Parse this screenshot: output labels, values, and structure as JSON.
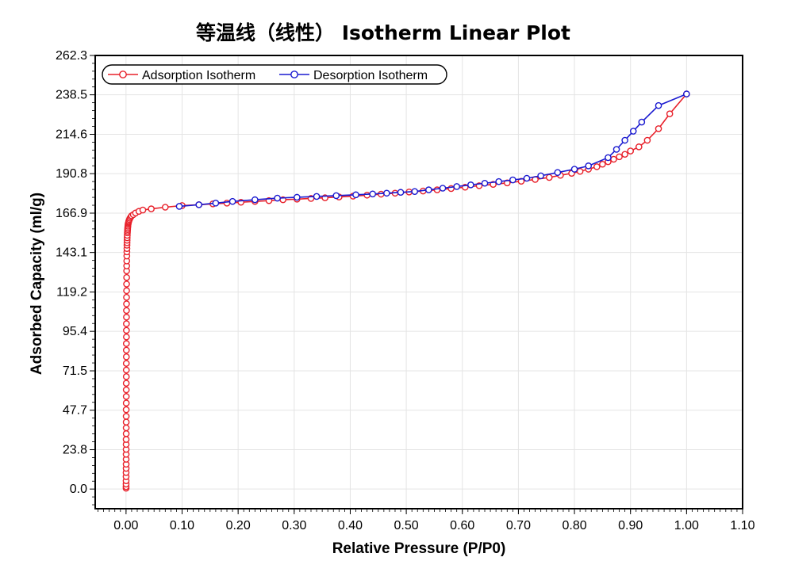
{
  "chart_data": {
    "type": "line",
    "title": "等温线（线性） Isotherm Linear Plot",
    "xlabel": "Relative Pressure (P/P0)",
    "ylabel": "Adsorbed Capacity (ml/g)",
    "xlim": [
      -0.055,
      1.1
    ],
    "ylim": [
      -11.9,
      262.3
    ],
    "x_ticks": [
      0.0,
      0.1,
      0.2,
      0.3,
      0.4,
      0.5,
      0.6,
      0.7,
      0.8,
      0.9,
      1.0,
      1.1
    ],
    "x_tick_labels": [
      "0.00",
      "0.10",
      "0.20",
      "0.30",
      "0.40",
      "0.50",
      "0.60",
      "0.70",
      "0.80",
      "0.90",
      "1.00",
      "1.10"
    ],
    "y_ticks": [
      0.0,
      23.8,
      47.7,
      71.5,
      95.4,
      119.2,
      143.1,
      166.9,
      190.8,
      214.6,
      238.5,
      262.3
    ],
    "y_tick_labels": [
      "0.0",
      "23.8",
      "47.7",
      "71.5",
      "95.4",
      "119.2",
      "143.1",
      "166.9",
      "190.8",
      "214.6",
      "238.5",
      "262.3"
    ],
    "grid": true,
    "legend_position": "top-left",
    "series": [
      {
        "name": "Adsorption Isotherm",
        "color": "#e8202a",
        "marker": "open-circle",
        "x": [
          0.0001,
          0.0001,
          0.0001,
          0.0001,
          0.0001,
          0.0001,
          0.0002,
          0.0002,
          0.0002,
          0.0002,
          0.0002,
          0.0002,
          0.0002,
          0.0003,
          0.0003,
          0.0003,
          0.0003,
          0.0003,
          0.0004,
          0.0004,
          0.0004,
          0.0004,
          0.0005,
          0.0005,
          0.0005,
          0.0006,
          0.0006,
          0.0006,
          0.0007,
          0.0007,
          0.0007,
          0.0008,
          0.0008,
          0.0009,
          0.0009,
          0.001,
          0.001,
          0.0011,
          0.0011,
          0.0012,
          0.0013,
          0.0014,
          0.0015,
          0.0016,
          0.0017,
          0.0018,
          0.0019,
          0.002,
          0.0022,
          0.0024,
          0.0026,
          0.0028,
          0.003,
          0.0033,
          0.0036,
          0.004,
          0.0045,
          0.005,
          0.006,
          0.007,
          0.0085,
          0.01,
          0.013,
          0.017,
          0.023,
          0.03,
          0.045,
          0.07,
          0.1,
          0.13,
          0.155,
          0.18,
          0.205,
          0.23,
          0.255,
          0.28,
          0.305,
          0.33,
          0.355,
          0.38,
          0.405,
          0.43,
          0.455,
          0.48,
          0.505,
          0.53,
          0.555,
          0.58,
          0.605,
          0.63,
          0.655,
          0.68,
          0.705,
          0.73,
          0.755,
          0.775,
          0.795,
          0.81,
          0.825,
          0.84,
          0.85,
          0.86,
          0.87,
          0.88,
          0.89,
          0.9,
          0.915,
          0.93,
          0.95,
          0.97,
          1.0
        ],
        "y": [
          0.5,
          1.5,
          3.0,
          5.0,
          7.5,
          10.0,
          12.5,
          15.0,
          18.0,
          21.0,
          24.0,
          27.0,
          30.0,
          33.5,
          37.0,
          40.5,
          44.0,
          48.0,
          52.0,
          56.0,
          60.0,
          64.0,
          68.0,
          72.0,
          76.0,
          80.0,
          84.0,
          88.0,
          92.0,
          96.0,
          100.0,
          104.0,
          108.0,
          112.0,
          116.0,
          120.0,
          124.0,
          128.0,
          132.0,
          135.0,
          138.0,
          141.0,
          143.5,
          145.5,
          147.5,
          149.0,
          150.5,
          152.0,
          153.5,
          155.0,
          156.0,
          157.0,
          158.0,
          159.0,
          160.0,
          160.8,
          161.5,
          162.2,
          163.0,
          163.8,
          164.6,
          165.3,
          166.0,
          167.0,
          168.0,
          168.8,
          169.5,
          170.5,
          171.5,
          172.0,
          172.5,
          173.0,
          173.5,
          174.0,
          174.5,
          175.0,
          175.4,
          175.8,
          176.2,
          176.7,
          177.2,
          177.8,
          178.4,
          179.0,
          179.7,
          180.3,
          181.0,
          181.8,
          182.6,
          183.5,
          184.3,
          185.2,
          186.2,
          187.3,
          188.5,
          189.8,
          191.0,
          192.2,
          193.5,
          195.0,
          196.5,
          198.0,
          199.5,
          201.0,
          202.5,
          204.5,
          207.0,
          211.0,
          218.0,
          227.0,
          239.0
        ]
      },
      {
        "name": "Desorption Isotherm",
        "color": "#1a1ad0",
        "marker": "open-circle",
        "x": [
          1.0,
          0.95,
          0.92,
          0.905,
          0.89,
          0.875,
          0.86,
          0.825,
          0.8,
          0.77,
          0.74,
          0.715,
          0.69,
          0.665,
          0.64,
          0.615,
          0.59,
          0.565,
          0.54,
          0.515,
          0.49,
          0.465,
          0.44,
          0.41,
          0.375,
          0.34,
          0.305,
          0.27,
          0.23,
          0.19,
          0.16,
          0.13,
          0.095
        ],
        "y": [
          239.0,
          232.0,
          222.0,
          216.5,
          211.0,
          205.5,
          200.5,
          195.5,
          193.5,
          191.5,
          189.5,
          188.0,
          187.0,
          186.0,
          185.0,
          184.0,
          183.0,
          182.0,
          181.0,
          180.0,
          179.5,
          179.0,
          178.5,
          178.0,
          177.5,
          177.0,
          176.5,
          176.0,
          175.0,
          174.0,
          173.0,
          172.0,
          171.0
        ]
      }
    ]
  }
}
